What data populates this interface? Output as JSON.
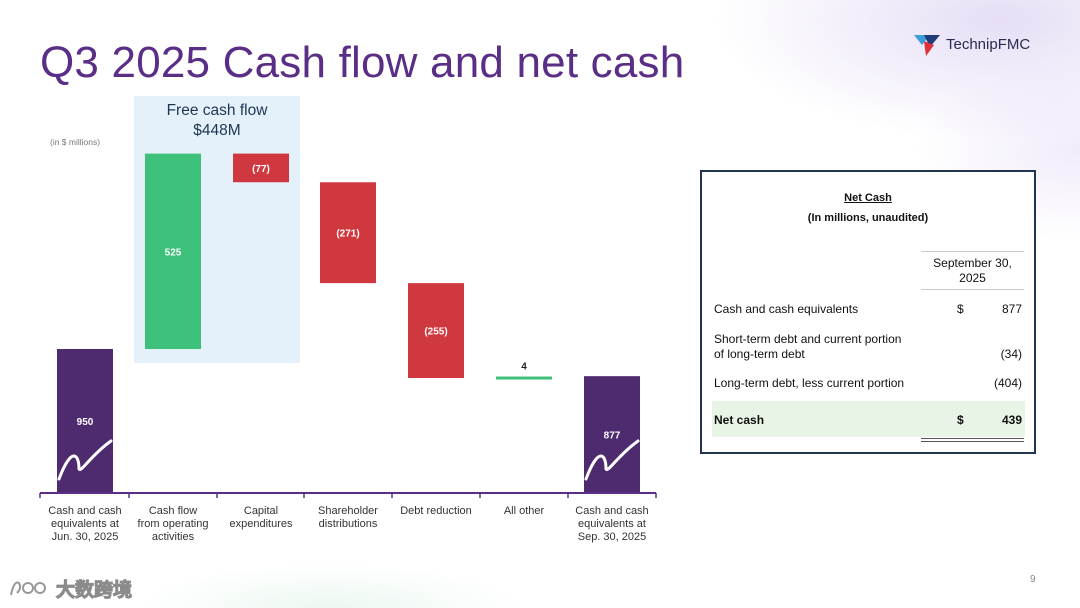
{
  "slide": {
    "title": "Q3 2025 Cash flow and net cash",
    "page_number": "9",
    "brand": "TechnipFMC",
    "units_note": "(in $ millions)"
  },
  "watermark": {
    "text": "大数跨境"
  },
  "free_cash_flow": {
    "title": "Free cash flow",
    "amount": "$448M"
  },
  "colors": {
    "title": "#5a2e86",
    "endpoint_bar": "#4e2a6e",
    "increase_bar": "#3cc07a",
    "decrease_bar": "#d0383f",
    "fcf_highlight": "#e4f1fa",
    "axis": "#5a2e86"
  },
  "chart_data": {
    "type": "bar",
    "variant": "waterfall",
    "categories": [
      "Cash and cash equivalents at Jun. 30, 2025",
      "Cash flow from operating activities",
      "Capital expenditures",
      "Shareholder distributions",
      "Debt reduction",
      "All other",
      "Cash and cash equivalents at Sep. 30, 2025"
    ],
    "category_lines": [
      [
        "Cash and cash",
        "equivalents at",
        "Jun. 30, 2025"
      ],
      [
        "Cash flow",
        "from operating",
        "activities"
      ],
      [
        "Capital",
        "expenditures"
      ],
      [
        "Shareholder",
        "distributions"
      ],
      [
        "Debt reduction"
      ],
      [
        "All other"
      ],
      [
        "Cash and cash",
        "equivalents at",
        "Sep. 30, 2025"
      ]
    ],
    "values": [
      950,
      525,
      -77,
      -271,
      -255,
      4,
      877
    ],
    "labels": [
      "950",
      "525",
      "(77)",
      "(271)",
      "(255)",
      "4",
      "877"
    ],
    "kinds": [
      "total",
      "increase",
      "decrease",
      "decrease",
      "decrease",
      "increase",
      "total"
    ],
    "axis_break": true,
    "grid": false,
    "legend": "none"
  },
  "net_cash": {
    "title": "Net Cash",
    "subtitle": "(In millions, unaudited)",
    "column_header_lines": [
      "September 30,",
      "2025"
    ],
    "rows": [
      {
        "label_lines": [
          "Cash and cash equivalents"
        ],
        "dollar": "$",
        "value": "877",
        "total": false
      },
      {
        "label_lines": [
          "Short-term debt and current portion",
          "of long-term debt"
        ],
        "dollar": "",
        "value": "(34)",
        "total": false
      },
      {
        "label_lines": [
          "Long-term debt, less current portion"
        ],
        "dollar": "",
        "value": "(404)",
        "total": false
      },
      {
        "label_lines": [
          "Net cash"
        ],
        "dollar": "$",
        "value": "439",
        "total": true
      }
    ]
  }
}
